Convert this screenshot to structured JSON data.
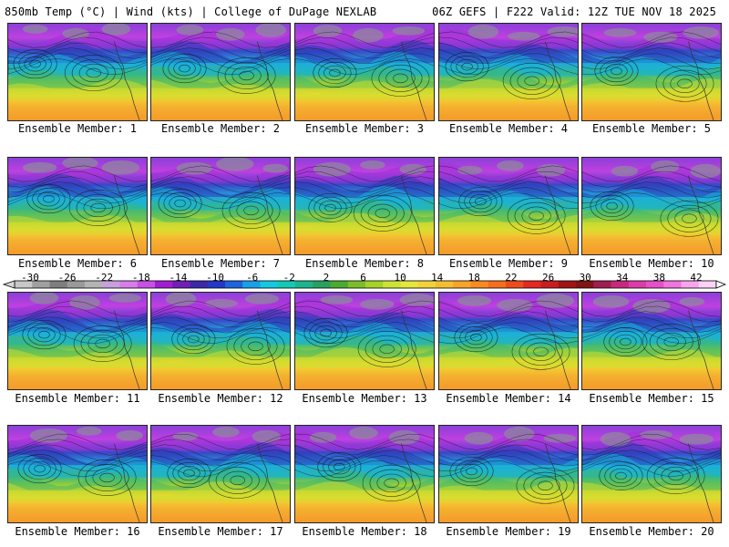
{
  "header": {
    "left_title": "850mb Temp (°C) | Wind (kts) | College of DuPage NEXLAB",
    "right_title": "06Z GEFS | F222 Valid: 12Z TUE NOV 18 2025"
  },
  "colorbar": {
    "tick_labels": [
      "-30",
      "-26",
      "-22",
      "-18",
      "-14",
      "-10",
      "-6",
      "-2",
      "2",
      "6",
      "10",
      "14",
      "18",
      "22",
      "26",
      "30",
      "34",
      "38",
      "42"
    ],
    "colors": [
      "#c8c8c8",
      "#a0a0a0",
      "#7e7e7e",
      "#9a9a9a",
      "#b4b4b4",
      "#c8a0dc",
      "#d67ee8",
      "#c850e6",
      "#a01ed2",
      "#6f1fb8",
      "#3a2aa8",
      "#2438c8",
      "#1e64dc",
      "#1aa0e6",
      "#14c8e0",
      "#14c8b4",
      "#1eb48c",
      "#2aa060",
      "#4aaa32",
      "#7cbe2a",
      "#a6d22a",
      "#cce23a",
      "#e6e63c",
      "#f0d23c",
      "#f4be32",
      "#f8a42a",
      "#f88a22",
      "#f46e1e",
      "#ee4c1e",
      "#e22a22",
      "#c81e1e",
      "#a01414",
      "#821414",
      "#a01e50",
      "#c8287e",
      "#dc3ca8",
      "#e650c8",
      "#f076dc",
      "#f8a4ec",
      "#fcd2f6"
    ]
  },
  "members": [
    {
      "label": "Ensemble Member: 1"
    },
    {
      "label": "Ensemble Member: 2"
    },
    {
      "label": "Ensemble Member: 3"
    },
    {
      "label": "Ensemble Member: 4"
    },
    {
      "label": "Ensemble Member: 5"
    },
    {
      "label": "Ensemble Member: 6"
    },
    {
      "label": "Ensemble Member: 7"
    },
    {
      "label": "Ensemble Member: 8"
    },
    {
      "label": "Ensemble Member: 9"
    },
    {
      "label": "Ensemble Member: 10"
    },
    {
      "label": "Ensemble Member: 11"
    },
    {
      "label": "Ensemble Member: 12"
    },
    {
      "label": "Ensemble Member: 13"
    },
    {
      "label": "Ensemble Member: 14"
    },
    {
      "label": "Ensemble Member: 15"
    },
    {
      "label": "Ensemble Member: 16"
    },
    {
      "label": "Ensemble Member: 17"
    },
    {
      "label": "Ensemble Member: 18"
    },
    {
      "label": "Ensemble Member: 19"
    },
    {
      "label": "Ensemble Member: 20"
    }
  ]
}
